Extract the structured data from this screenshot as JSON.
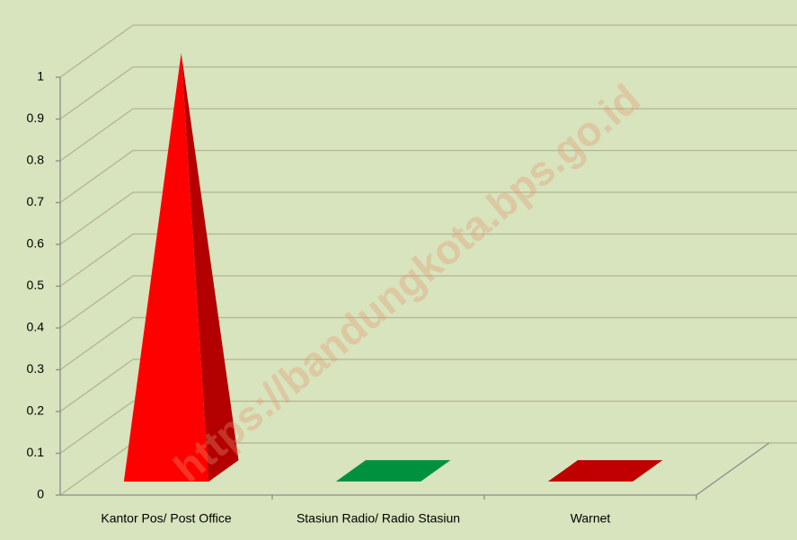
{
  "chart_data": {
    "type": "bar3d",
    "categories": [
      "Kantor Pos/ Post Office",
      "Stasiun Radio/ Radio Stasiun",
      "Warnet"
    ],
    "values": [
      1,
      0,
      0
    ],
    "colors": [
      "#ff0000",
      "#00913f",
      "#c00000"
    ],
    "ylim": [
      0,
      1
    ],
    "yticks": [
      0,
      0.1,
      0.2,
      0.3,
      0.4,
      0.5,
      0.6,
      0.7,
      0.8,
      0.9,
      1
    ],
    "grid": true,
    "watermark": "https://bandungkota.bps.go.id"
  }
}
